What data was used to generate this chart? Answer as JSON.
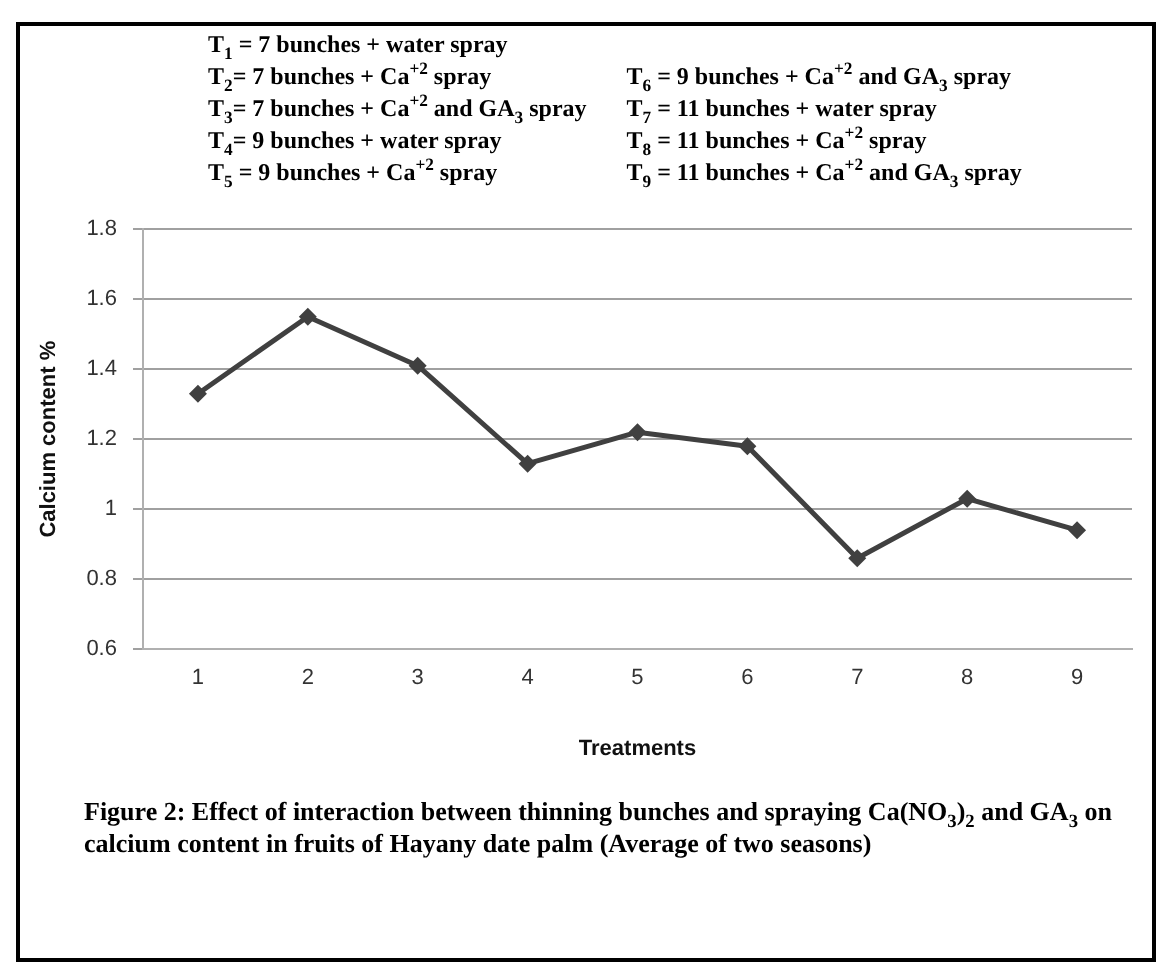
{
  "chart_data": {
    "type": "line",
    "xlabel": "Treatments",
    "ylabel": "Calcium content %",
    "categories": [
      "1",
      "2",
      "3",
      "4",
      "5",
      "6",
      "7",
      "8",
      "9"
    ],
    "series": [
      {
        "color": "#404040",
        "values": [
          1.33,
          1.55,
          1.41,
          1.13,
          1.22,
          1.18,
          0.86,
          1.03,
          0.94
        ]
      }
    ],
    "ylim": [
      0.6,
      1.8
    ],
    "yticks": [
      0.6,
      0.8,
      1,
      1.2,
      1.4,
      1.6,
      1.8
    ],
    "grid": "y",
    "legend": false,
    "marker": "diamond",
    "line_style": "solid",
    "annotations": [
      "T$_{1}$ = 7 bunches + water spray",
      "T$_{2}$= 7 bunches + Ca$^{+2}$ spray",
      "T$_{3}$= 7 bunches + Ca$^{+2}$ and GA$_{3}$ spray",
      "T$_{4}$= 9 bunches + water spray",
      "T$_{5}$ = 9 bunches + Ca$^{+2}$ spray",
      "T$_{6}$ = 9 bunches + Ca$^{+2}$ and GA$_{3}$ spray",
      "T$_{7}$ = 11 bunches + water spray",
      "T$_{8}$ = 11 bunches + Ca$^{+2}$ spray",
      "T$_{9}$ = 11 bunches + Ca$^{+2}$ and GA$_{3}$ spray",
      "Figure 2: Effect of interaction between thinning bunches and spraying Ca(NO$_{3}$)$_{2}$ and GA$_{3}$ on calcium content in fruits of Hayany date palm (Average of two seasons)"
    ]
  }
}
